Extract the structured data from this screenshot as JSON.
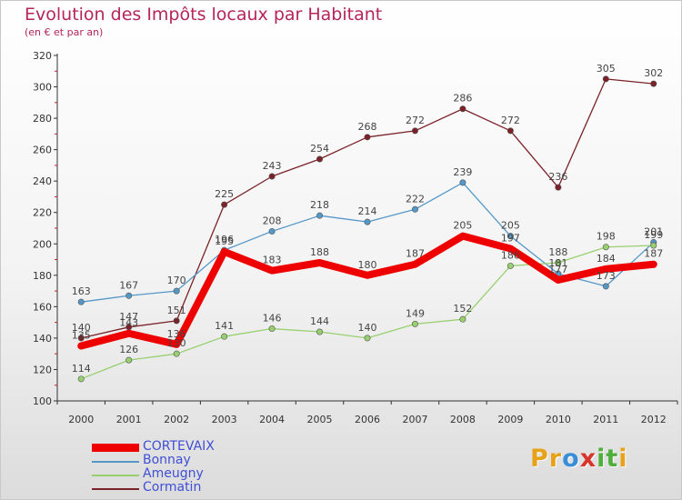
{
  "header": {
    "title": "Evolution des Impôts locaux par Habitant",
    "subtitle": "(en € et par an)"
  },
  "brand": {
    "logo_letters": [
      "P",
      "r",
      "o",
      "x",
      "i",
      "t",
      "i"
    ],
    "logo_colors": [
      "#e8a21a",
      "#e8a21a",
      "#3a8ed8",
      "#d8342c",
      "#4fae3c",
      "#4fae3c",
      "#e8a21a"
    ]
  },
  "colors": {
    "accent": "#b5245a",
    "legend_text": "#3f4fd6",
    "axis": "#333333"
  },
  "chart_data": {
    "type": "line",
    "title": "Evolution des Impôts locaux par Habitant",
    "subtitle": "(en € et par an)",
    "xlabel": "",
    "ylabel": "",
    "categories": [
      "2000",
      "2001",
      "2002",
      "2003",
      "2004",
      "2005",
      "2006",
      "2007",
      "2008",
      "2009",
      "2010",
      "2011",
      "2012"
    ],
    "ylim": [
      100,
      320
    ],
    "yticks": [
      100,
      120,
      140,
      160,
      180,
      200,
      220,
      240,
      260,
      280,
      300,
      320
    ],
    "grid": false,
    "legend": "bottom-left",
    "series": [
      {
        "name": "CORTEVAIX",
        "color": "#ee0000",
        "values": [
          135,
          143,
          136,
          195,
          183,
          188,
          180,
          187,
          205,
          197,
          177,
          184,
          187
        ],
        "labels": [
          "135",
          "143",
          "136",
          "195",
          "183",
          "188",
          "180",
          "187",
          "205",
          "197",
          "177",
          "184",
          "187"
        ]
      },
      {
        "name": "Bonnay",
        "color": "#5598c8",
        "values": [
          163,
          167,
          170,
          196,
          208,
          218,
          214,
          222,
          239,
          205,
          181,
          173,
          201
        ],
        "labels": [
          "163",
          "167",
          "170",
          "196",
          "208",
          "218",
          "214",
          "222",
          "239",
          "205",
          "181",
          "173",
          "201"
        ]
      },
      {
        "name": "Ameugny",
        "color": "#98d070",
        "values": [
          114,
          126,
          130,
          141,
          146,
          144,
          140,
          149,
          152,
          186,
          188,
          198,
          199
        ],
        "labels": [
          "114",
          "126",
          "130",
          "141",
          "146",
          "144",
          "140",
          "149",
          "152",
          "186",
          "188",
          "198",
          "199"
        ]
      },
      {
        "name": "Cormatin",
        "color": "#7a2228",
        "values": [
          140,
          147,
          151,
          225,
          243,
          254,
          268,
          272,
          286,
          272,
          236,
          305,
          302
        ],
        "labels": [
          "140",
          "147",
          "151",
          "225",
          "243",
          "254",
          "268",
          "272",
          "286",
          "272",
          "236",
          "305",
          "302"
        ]
      }
    ]
  }
}
